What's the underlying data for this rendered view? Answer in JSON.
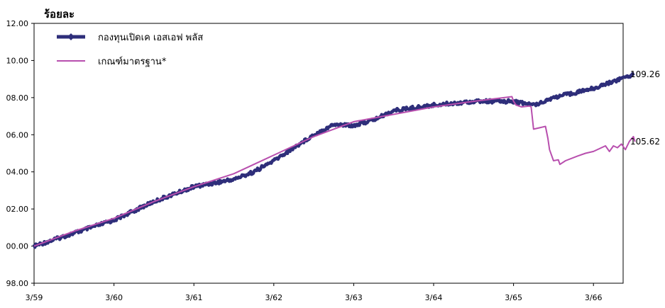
{
  "chart_data": {
    "type": "line",
    "title": "",
    "ylabel": "ร้อยละ",
    "xlabel": "",
    "ylim": [
      98.0,
      112.0
    ],
    "yticks": [
      "98.00",
      "00.00",
      "02.00",
      "04.00",
      "06.00",
      "08.00",
      "10.00",
      "12.00"
    ],
    "yticks_values": [
      98,
      100,
      102,
      104,
      106,
      108,
      110,
      112
    ],
    "xticks": [
      "3/59",
      "3/60",
      "3/61",
      "3/62",
      "3/63",
      "3/64",
      "3/65",
      "3/66"
    ],
    "x_range": [
      0,
      7.5
    ],
    "grid": false,
    "legend_position": "top-left",
    "series": [
      {
        "name": "กองทุนเปิดเค เอสเอฟ พลัส",
        "color": "#2e2e7a",
        "style": "thick-line-diamond",
        "end_label": "109.26",
        "points": [
          [
            0.0,
            100.0
          ],
          [
            0.5,
            100.7
          ],
          [
            1.0,
            101.4
          ],
          [
            1.5,
            102.4
          ],
          [
            2.0,
            103.2
          ],
          [
            2.5,
            103.6
          ],
          [
            2.75,
            104.0
          ],
          [
            3.0,
            104.6
          ],
          [
            3.25,
            105.3
          ],
          [
            3.5,
            106.0
          ],
          [
            3.75,
            106.55
          ],
          [
            4.0,
            106.5
          ],
          [
            4.25,
            106.8
          ],
          [
            4.5,
            107.3
          ],
          [
            5.0,
            107.6
          ],
          [
            5.5,
            107.8
          ],
          [
            6.0,
            107.8
          ],
          [
            6.25,
            107.6
          ],
          [
            6.5,
            108.0
          ],
          [
            7.0,
            108.5
          ],
          [
            7.5,
            109.26
          ]
        ]
      },
      {
        "name": "เกณฑ์มาตรฐาน*",
        "color": "#b84fae",
        "style": "thin-line",
        "end_label": "105.62",
        "points": [
          [
            0.0,
            100.0
          ],
          [
            0.5,
            100.8
          ],
          [
            1.0,
            101.5
          ],
          [
            1.5,
            102.4
          ],
          [
            2.0,
            103.2
          ],
          [
            2.5,
            103.9
          ],
          [
            3.0,
            104.9
          ],
          [
            3.5,
            105.9
          ],
          [
            4.0,
            106.7
          ],
          [
            4.5,
            107.1
          ],
          [
            5.0,
            107.5
          ],
          [
            5.5,
            107.8
          ],
          [
            5.98,
            108.05
          ],
          [
            6.0,
            107.8
          ],
          [
            6.03,
            107.6
          ],
          [
            6.1,
            107.5
          ],
          [
            6.2,
            107.55
          ],
          [
            6.22,
            107.5
          ],
          [
            6.25,
            106.3
          ],
          [
            6.4,
            106.45
          ],
          [
            6.43,
            105.8
          ],
          [
            6.45,
            105.2
          ],
          [
            6.5,
            104.6
          ],
          [
            6.56,
            104.65
          ],
          [
            6.58,
            104.4
          ],
          [
            6.65,
            104.6
          ],
          [
            6.8,
            104.85
          ],
          [
            6.9,
            105.0
          ],
          [
            7.0,
            105.1
          ],
          [
            7.15,
            105.4
          ],
          [
            7.2,
            105.1
          ],
          [
            7.25,
            105.4
          ],
          [
            7.3,
            105.3
          ],
          [
            7.35,
            105.5
          ],
          [
            7.4,
            105.2
          ],
          [
            7.45,
            105.65
          ],
          [
            7.5,
            105.9
          ],
          [
            7.52,
            105.62
          ]
        ]
      }
    ]
  }
}
